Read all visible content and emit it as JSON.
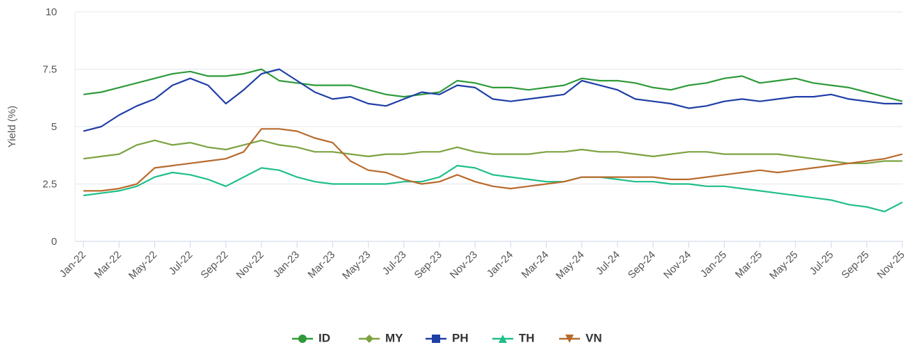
{
  "chart_data": {
    "type": "line",
    "y_label": "Yield (%)",
    "categories": [
      "Jan-22",
      null,
      "Mar-22",
      null,
      "May-22",
      null,
      "Jul-22",
      null,
      "Sep-22",
      null,
      "Nov-22",
      null,
      "Jan-23",
      null,
      "Mar-23",
      null,
      "May-23",
      null,
      "Jul-23",
      null,
      "Sep-23",
      null,
      "Nov-23",
      null,
      "Jan-24",
      null,
      "Mar-24",
      null,
      "May-24",
      null,
      "Jul-24",
      null,
      "Sep-24",
      null,
      "Nov-24",
      null,
      "Jan-25",
      null,
      "Mar-25",
      null,
      "May-25",
      null,
      "Jul-25",
      null,
      "Sep-25",
      null,
      "Nov-25"
    ],
    "ylim": [
      0,
      10
    ],
    "yticks": [
      0,
      2.5,
      5,
      7.5,
      10
    ],
    "grid": true,
    "legend": "bottom",
    "series": [
      {
        "name": "ID",
        "color": "#2e9a3a",
        "marker": "circle",
        "values": [
          6.4,
          6.5,
          6.7,
          6.9,
          7.1,
          7.3,
          7.4,
          7.2,
          7.2,
          7.3,
          7.5,
          7.0,
          6.9,
          6.8,
          6.8,
          6.8,
          6.6,
          6.4,
          6.3,
          6.4,
          6.5,
          7.0,
          6.9,
          6.7,
          6.7,
          6.6,
          6.7,
          6.8,
          7.1,
          7.0,
          7.0,
          6.9,
          6.7,
          6.6,
          6.8,
          6.9,
          7.1,
          7.2,
          6.9,
          7.0,
          7.1,
          6.9,
          6.8,
          6.7,
          6.5,
          6.3,
          6.1
        ]
      },
      {
        "name": "MY",
        "color": "#7ba23f",
        "marker": "diamond",
        "values": [
          3.6,
          3.7,
          3.8,
          4.2,
          4.4,
          4.2,
          4.3,
          4.1,
          4.0,
          4.2,
          4.4,
          4.2,
          4.1,
          3.9,
          3.9,
          3.8,
          3.7,
          3.8,
          3.8,
          3.9,
          3.9,
          4.1,
          3.9,
          3.8,
          3.8,
          3.8,
          3.9,
          3.9,
          4.0,
          3.9,
          3.9,
          3.8,
          3.7,
          3.8,
          3.9,
          3.9,
          3.8,
          3.8,
          3.8,
          3.8,
          3.7,
          3.6,
          3.5,
          3.4,
          3.4,
          3.5,
          3.5
        ]
      },
      {
        "name": "PH",
        "color": "#1f3ea6",
        "marker": "square",
        "values": [
          4.8,
          5.0,
          5.5,
          5.9,
          6.2,
          6.8,
          7.1,
          6.8,
          6.0,
          6.6,
          7.3,
          7.5,
          7.0,
          6.5,
          6.2,
          6.3,
          6.0,
          5.9,
          6.2,
          6.5,
          6.4,
          6.8,
          6.7,
          6.2,
          6.1,
          6.2,
          6.3,
          6.4,
          7.0,
          6.8,
          6.6,
          6.2,
          6.1,
          6.0,
          5.8,
          5.9,
          6.1,
          6.2,
          6.1,
          6.2,
          6.3,
          6.3,
          6.4,
          6.2,
          6.1,
          6.0,
          6.0
        ]
      },
      {
        "name": "TH",
        "color": "#1fbf8a",
        "marker": "triangle-up",
        "values": [
          2.0,
          2.1,
          2.2,
          2.4,
          2.8,
          3.0,
          2.9,
          2.7,
          2.4,
          2.8,
          3.2,
          3.1,
          2.8,
          2.6,
          2.5,
          2.5,
          2.5,
          2.5,
          2.6,
          2.6,
          2.8,
          3.3,
          3.2,
          2.9,
          2.8,
          2.7,
          2.6,
          2.6,
          2.8,
          2.8,
          2.7,
          2.6,
          2.6,
          2.5,
          2.5,
          2.4,
          2.4,
          2.3,
          2.2,
          2.1,
          2.0,
          1.9,
          1.8,
          1.6,
          1.5,
          1.3,
          1.7
        ]
      },
      {
        "name": "VN",
        "color": "#b86a2c",
        "marker": "triangle-down",
        "values": [
          2.2,
          2.2,
          2.3,
          2.5,
          3.2,
          3.3,
          3.4,
          3.5,
          3.6,
          3.9,
          4.9,
          4.9,
          4.8,
          4.5,
          4.3,
          3.5,
          3.1,
          3.0,
          2.7,
          2.5,
          2.6,
          2.9,
          2.6,
          2.4,
          2.3,
          2.4,
          2.5,
          2.6,
          2.8,
          2.8,
          2.8,
          2.8,
          2.8,
          2.7,
          2.7,
          2.8,
          2.9,
          3.0,
          3.1,
          3.0,
          3.1,
          3.2,
          3.3,
          3.4,
          3.5,
          3.6,
          3.8
        ]
      }
    ]
  }
}
